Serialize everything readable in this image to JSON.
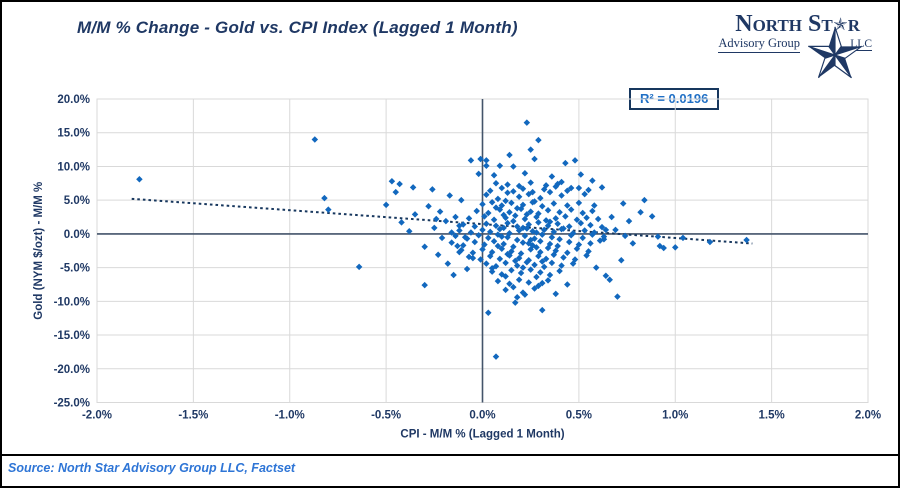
{
  "title": "M/M % Change - Gold vs. CPI Index (Lagged 1 Month)",
  "logo": {
    "title_pre": "North St",
    "title_post": "r",
    "subtitle": "Advisory Group",
    "suffix": "LLC"
  },
  "annotation": {
    "r_squared_label": "R² = 0.0196"
  },
  "source": "Source: North Star Advisory Group LLC, Factset",
  "colors": {
    "navy_text": "#1F3864",
    "axis_line": "#44546A",
    "gridline": "#D9D9D9",
    "marker": "#1268BE",
    "trend": "#17375E",
    "r2_text": "#1F6FC5",
    "source_text": "#2E75D6"
  },
  "chart_data": {
    "type": "scatter",
    "title": "M/M % Change - Gold vs. CPI Index (Lagged 1 Month)",
    "xlabel": "CPI - M/M % (Lagged 1 Month)",
    "ylabel": "Gold (NYM $/ozt) - M/M %",
    "xlim": [
      -2.0,
      2.0
    ],
    "ylim": [
      -25.0,
      20.0
    ],
    "grid": true,
    "r_squared": 0.0196,
    "x_tick_values": [
      -2.0,
      -1.5,
      -1.0,
      -0.5,
      0.0,
      0.5,
      1.0,
      1.5,
      2.0
    ],
    "x_tick_labels": [
      "-2.0%",
      "-1.5%",
      "-1.0%",
      "-0.5%",
      "0.0%",
      "0.5%",
      "1.0%",
      "1.5%",
      "2.0%"
    ],
    "y_tick_values": [
      20,
      15,
      10,
      5,
      0,
      -5,
      -10,
      -15,
      -20,
      -25
    ],
    "y_tick_labels": [
      "20.0%",
      "15.0%",
      "10.0%",
      "5.0%",
      "0.0%",
      "-5.0%",
      "-10.0%",
      "-15.0%",
      "-20.0%",
      "-25.0%"
    ],
    "trend_line": {
      "x1": -1.82,
      "y1": 5.2,
      "x2": 1.4,
      "y2": -1.43,
      "style": "dotted"
    },
    "marker": {
      "shape": "diamond",
      "size": 6.5,
      "color": "#1268BE"
    },
    "points": [
      [
        -1.78,
        8.1
      ],
      [
        -0.87,
        14.0
      ],
      [
        -0.82,
        5.3
      ],
      [
        -0.8,
        3.6
      ],
      [
        -0.64,
        -4.9
      ],
      [
        -0.5,
        4.3
      ],
      [
        -0.47,
        7.8
      ],
      [
        -0.43,
        7.4
      ],
      [
        -0.45,
        6.2
      ],
      [
        -0.36,
        6.9
      ],
      [
        -0.3,
        -1.9
      ],
      [
        -0.3,
        -7.6
      ],
      [
        -0.26,
        6.6
      ],
      [
        -0.35,
        2.9
      ],
      [
        -0.38,
        0.4
      ],
      [
        -0.42,
        1.7
      ],
      [
        -0.22,
        3.3
      ],
      [
        -0.25,
        0.9
      ],
      [
        -0.21,
        -0.6
      ],
      [
        -0.17,
        5.7
      ],
      [
        -0.11,
        5.0
      ],
      [
        -0.06,
        10.9
      ],
      [
        -0.01,
        11.1
      ],
      [
        0.02,
        10.9
      ],
      [
        0.02,
        10.1
      ],
      [
        0.09,
        10.1
      ],
      [
        0.16,
        10.0
      ],
      [
        0.14,
        11.7
      ],
      [
        0.23,
        16.5
      ],
      [
        0.29,
        13.9
      ],
      [
        0.25,
        12.5
      ],
      [
        0.27,
        11.1
      ],
      [
        0.43,
        10.5
      ],
      [
        0.48,
        10.9
      ],
      [
        0.22,
        9.0
      ],
      [
        0.36,
        8.5
      ],
      [
        0.51,
        8.8
      ],
      [
        -0.02,
        8.9
      ],
      [
        0.06,
        8.7
      ],
      [
        0.84,
        5.0
      ],
      [
        0.82,
        3.2
      ],
      [
        0.91,
        -0.4
      ],
      [
        0.92,
        -1.8
      ],
      [
        0.94,
        -2.1
      ],
      [
        1.0,
        -2.0
      ],
      [
        1.04,
        -0.6
      ],
      [
        1.18,
        -1.2
      ],
      [
        1.37,
        -0.9
      ],
      [
        0.78,
        -1.4
      ],
      [
        0.72,
        -3.9
      ],
      [
        0.66,
        -6.8
      ],
      [
        0.64,
        -6.2
      ],
      [
        0.59,
        -5.0
      ],
      [
        0.7,
        -9.3
      ],
      [
        0.07,
        -18.2
      ],
      [
        0.03,
        -11.7
      ],
      [
        0.31,
        -11.3
      ],
      [
        0.17,
        -10.2
      ],
      [
        0.22,
        -9.0
      ],
      [
        0.31,
        -7.3
      ],
      [
        0.55,
        6.5
      ],
      [
        0.62,
        6.9
      ],
      [
        0.58,
        4.2
      ],
      [
        0.67,
        2.5
      ],
      [
        0.73,
        4.5
      ],
      [
        0.76,
        1.9
      ],
      [
        0.88,
        2.6
      ],
      [
        0.63,
        -0.8
      ],
      [
        0.69,
        0.6
      ],
      [
        0.74,
        -0.3
      ],
      [
        0.39,
        7.4
      ],
      [
        0.46,
        6.8
      ],
      [
        0.53,
        5.9
      ],
      [
        0.57,
        7.9
      ],
      [
        -0.14,
        2.5
      ],
      [
        -0.12,
        1.2
      ],
      [
        -0.16,
        0.2
      ],
      [
        -0.09,
        -0.5
      ],
      [
        -0.13,
        -1.8
      ],
      [
        -0.19,
        1.9
      ],
      [
        -0.24,
        2.2
      ],
      [
        -0.28,
        4.1
      ],
      [
        -0.23,
        -3.1
      ],
      [
        -0.18,
        -4.4
      ],
      [
        -0.12,
        -2.7
      ],
      [
        -0.08,
        -5.2
      ],
      [
        -0.05,
        -3.6
      ],
      [
        -0.15,
        -6.1
      ],
      [
        0.04,
        6.4
      ],
      [
        0.1,
        6.8
      ],
      [
        0.16,
        6.3
      ],
      [
        0.21,
        6.7
      ],
      [
        0.26,
        6.2
      ],
      [
        0.32,
        6.6
      ],
      [
        0.38,
        7.0
      ],
      [
        0.44,
        6.4
      ],
      [
        0.5,
        6.8
      ],
      [
        0.13,
        7.3
      ],
      [
        0.25,
        7.6
      ],
      [
        0.33,
        7.2
      ],
      [
        0.41,
        7.7
      ],
      [
        0.19,
        7.1
      ],
      [
        0.07,
        7.5
      ],
      [
        0.02,
        5.8
      ],
      [
        0.08,
        5.2
      ],
      [
        0.13,
        6.1
      ],
      [
        0.19,
        5.5
      ],
      [
        0.24,
        5.9
      ],
      [
        0.3,
        5.3
      ],
      [
        0.35,
        6.2
      ],
      [
        0.41,
        5.7
      ],
      [
        0.12,
        4.9
      ],
      [
        0.27,
        4.8
      ],
      [
        0.0,
        4.4
      ],
      [
        0.05,
        4.7
      ],
      [
        0.1,
        4.2
      ],
      [
        0.15,
        4.6
      ],
      [
        0.21,
        4.3
      ],
      [
        0.26,
        4.7
      ],
      [
        0.31,
        4.1
      ],
      [
        0.37,
        4.5
      ],
      [
        0.44,
        4.2
      ],
      [
        0.5,
        4.6
      ],
      [
        0.07,
        3.9
      ],
      [
        0.18,
        3.8
      ],
      [
        -0.03,
        3.4
      ],
      [
        0.03,
        3.1
      ],
      [
        0.09,
        3.6
      ],
      [
        0.14,
        3.2
      ],
      [
        0.2,
        3.7
      ],
      [
        0.25,
        3.3
      ],
      [
        0.29,
        3.0
      ],
      [
        0.34,
        3.5
      ],
      [
        0.4,
        3.2
      ],
      [
        0.46,
        3.6
      ],
      [
        0.52,
        3.1
      ],
      [
        0.57,
        3.4
      ],
      [
        0.11,
        2.8
      ],
      [
        0.23,
        2.9
      ],
      [
        -0.07,
        2.3
      ],
      [
        0.01,
        2.6
      ],
      [
        0.06,
        2.1
      ],
      [
        0.12,
        2.4
      ],
      [
        0.17,
        2.7
      ],
      [
        0.22,
        2.2
      ],
      [
        0.28,
        2.5
      ],
      [
        0.33,
        2.0
      ],
      [
        0.38,
        2.3
      ],
      [
        0.43,
        2.6
      ],
      [
        0.49,
        2.1
      ],
      [
        0.54,
        2.4
      ],
      [
        0.6,
        2.2
      ],
      [
        0.16,
        1.9
      ],
      [
        0.35,
        1.8
      ],
      [
        -0.1,
        1.4
      ],
      [
        -0.04,
        1.1
      ],
      [
        0.02,
        1.5
      ],
      [
        0.07,
        1.2
      ],
      [
        0.13,
        1.6
      ],
      [
        0.18,
        1.1
      ],
      [
        0.24,
        1.4
      ],
      [
        0.29,
        1.7
      ],
      [
        0.34,
        1.2
      ],
      [
        0.39,
        1.5
      ],
      [
        0.45,
        1.1
      ],
      [
        0.51,
        1.6
      ],
      [
        0.56,
        1.3
      ],
      [
        0.62,
        1.0
      ],
      [
        0.21,
        0.9
      ],
      [
        0.42,
        0.8
      ],
      [
        -0.12,
        0.5
      ],
      [
        -0.06,
        0.2
      ],
      [
        0.0,
        0.6
      ],
      [
        0.04,
        0.3
      ],
      [
        0.09,
        0.7
      ],
      [
        0.14,
        0.1
      ],
      [
        0.19,
        0.5
      ],
      [
        0.23,
        0.8
      ],
      [
        0.28,
        0.2
      ],
      [
        0.32,
        0.6
      ],
      [
        0.37,
        0.3
      ],
      [
        0.41,
        0.7
      ],
      [
        0.47,
        0.1
      ],
      [
        0.53,
        0.5
      ],
      [
        0.58,
        0.2
      ],
      [
        0.64,
        0.6
      ],
      [
        0.26,
        0.4
      ],
      [
        0.11,
        0.9
      ],
      [
        -0.14,
        -0.3
      ],
      [
        -0.08,
        -0.7
      ],
      [
        -0.02,
        -0.2
      ],
      [
        0.03,
        -0.6
      ],
      [
        0.08,
        -0.1
      ],
      [
        0.13,
        -0.5
      ],
      [
        0.18,
        -0.9
      ],
      [
        0.22,
        -0.3
      ],
      [
        0.27,
        -0.7
      ],
      [
        0.31,
        -0.1
      ],
      [
        0.36,
        -0.5
      ],
      [
        0.4,
        -0.8
      ],
      [
        0.46,
        -0.2
      ],
      [
        0.52,
        -0.6
      ],
      [
        0.57,
        -0.1
      ],
      [
        0.63,
        -0.4
      ],
      [
        0.25,
        -0.9
      ],
      [
        0.1,
        -0.4
      ],
      [
        -0.16,
        -1.3
      ],
      [
        -0.1,
        -1.7
      ],
      [
        -0.04,
        -1.2
      ],
      [
        0.01,
        -1.6
      ],
      [
        0.06,
        -1.1
      ],
      [
        0.11,
        -1.5
      ],
      [
        0.16,
        -1.9
      ],
      [
        0.21,
        -1.3
      ],
      [
        0.26,
        -1.7
      ],
      [
        0.3,
        -1.1
      ],
      [
        0.35,
        -1.5
      ],
      [
        0.39,
        -1.8
      ],
      [
        0.45,
        -1.2
      ],
      [
        0.5,
        -1.6
      ],
      [
        0.56,
        -1.4
      ],
      [
        0.61,
        -1.0
      ],
      [
        0.24,
        -1.4
      ],
      [
        0.08,
        -1.8
      ],
      [
        -0.11,
        -2.4
      ],
      [
        -0.05,
        -2.8
      ],
      [
        0.0,
        -2.3
      ],
      [
        0.05,
        -2.7
      ],
      [
        0.1,
        -2.2
      ],
      [
        0.15,
        -2.6
      ],
      [
        0.2,
        -2.9
      ],
      [
        0.25,
        -2.3
      ],
      [
        0.3,
        -2.7
      ],
      [
        0.34,
        -2.1
      ],
      [
        0.38,
        -2.5
      ],
      [
        0.44,
        -2.8
      ],
      [
        0.49,
        -2.2
      ],
      [
        0.55,
        -2.6
      ],
      [
        0.28,
        -2.0
      ],
      [
        0.13,
        -3.0
      ],
      [
        -0.07,
        -3.4
      ],
      [
        -0.01,
        -3.8
      ],
      [
        0.04,
        -3.3
      ],
      [
        0.09,
        -3.7
      ],
      [
        0.14,
        -3.2
      ],
      [
        0.19,
        -3.6
      ],
      [
        0.24,
        -3.9
      ],
      [
        0.29,
        -3.3
      ],
      [
        0.33,
        -3.7
      ],
      [
        0.37,
        -3.1
      ],
      [
        0.42,
        -3.5
      ],
      [
        0.48,
        -3.8
      ],
      [
        0.54,
        -3.2
      ],
      [
        0.17,
        -4.0
      ],
      [
        0.31,
        -4.1
      ],
      [
        0.02,
        -4.4
      ],
      [
        0.07,
        -4.8
      ],
      [
        0.12,
        -4.3
      ],
      [
        0.18,
        -4.7
      ],
      [
        0.23,
        -4.2
      ],
      [
        0.27,
        -4.6
      ],
      [
        0.32,
        -4.9
      ],
      [
        0.36,
        -4.3
      ],
      [
        0.41,
        -4.7
      ],
      [
        0.47,
        -4.4
      ],
      [
        0.21,
        -5.0
      ],
      [
        0.05,
        -5.1
      ],
      [
        0.05,
        -5.6
      ],
      [
        0.1,
        -6.0
      ],
      [
        0.15,
        -5.4
      ],
      [
        0.2,
        -5.8
      ],
      [
        0.25,
        -5.3
      ],
      [
        0.3,
        -5.7
      ],
      [
        0.35,
        -6.1
      ],
      [
        0.4,
        -5.5
      ],
      [
        0.12,
        -6.3
      ],
      [
        0.28,
        -6.4
      ],
      [
        0.08,
        -7.0
      ],
      [
        0.14,
        -7.4
      ],
      [
        0.19,
        -6.8
      ],
      [
        0.24,
        -7.2
      ],
      [
        0.29,
        -7.7
      ],
      [
        0.34,
        -6.9
      ],
      [
        0.16,
        -7.9
      ],
      [
        0.44,
        -7.5
      ],
      [
        0.12,
        -8.3
      ],
      [
        0.21,
        -8.7
      ],
      [
        0.27,
        -8.1
      ],
      [
        0.38,
        -8.9
      ],
      [
        0.18,
        -9.4
      ]
    ]
  }
}
